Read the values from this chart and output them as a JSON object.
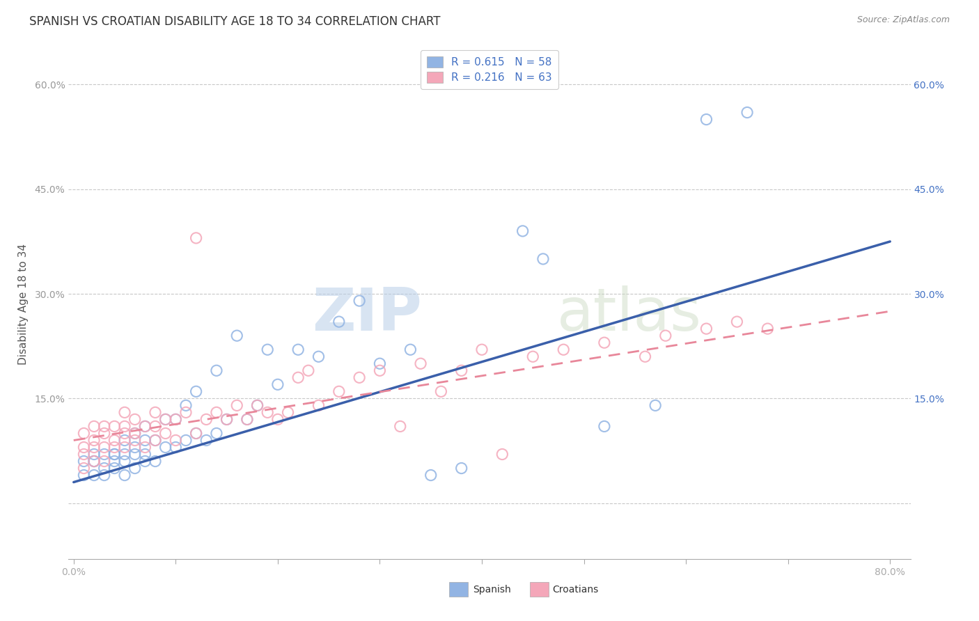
{
  "title": "SPANISH VS CROATIAN DISABILITY AGE 18 TO 34 CORRELATION CHART",
  "source": "Source: ZipAtlas.com",
  "ylabel": "Disability Age 18 to 34",
  "xlim": [
    -0.005,
    0.82
  ],
  "ylim": [
    -0.08,
    0.65
  ],
  "xticks": [
    0.0,
    0.1,
    0.2,
    0.3,
    0.4,
    0.5,
    0.6,
    0.7,
    0.8
  ],
  "xticklabels": [
    "0.0%",
    "",
    "",
    "",
    "",
    "",
    "",
    "",
    "80.0%"
  ],
  "yticks": [
    0.0,
    0.15,
    0.3,
    0.45,
    0.6
  ],
  "yticklabels": [
    "",
    "15.0%",
    "30.0%",
    "45.0%",
    "60.0%"
  ],
  "right_yticks": [
    0.15,
    0.3,
    0.45,
    0.6
  ],
  "right_yticklabels": [
    "15.0%",
    "30.0%",
    "45.0%",
    "60.0%"
  ],
  "legend_r_spanish": "0.615",
  "legend_n_spanish": "58",
  "legend_r_croatian": "0.216",
  "legend_n_croatian": "63",
  "spanish_color": "#92b4e3",
  "croatian_color": "#f4a7b9",
  "spanish_line_color": "#3a5faa",
  "croatian_line_color": "#e8879a",
  "watermark_zip": "ZIP",
  "watermark_atlas": "atlas",
  "title_fontsize": 12,
  "axis_label_fontsize": 11,
  "tick_fontsize": 10,
  "spanish_scatter_x": [
    0.01,
    0.01,
    0.02,
    0.02,
    0.02,
    0.02,
    0.03,
    0.03,
    0.03,
    0.04,
    0.04,
    0.04,
    0.04,
    0.05,
    0.05,
    0.05,
    0.05,
    0.06,
    0.06,
    0.06,
    0.06,
    0.07,
    0.07,
    0.07,
    0.07,
    0.08,
    0.08,
    0.09,
    0.09,
    0.1,
    0.1,
    0.11,
    0.11,
    0.12,
    0.12,
    0.13,
    0.14,
    0.14,
    0.15,
    0.16,
    0.17,
    0.18,
    0.19,
    0.2,
    0.22,
    0.24,
    0.26,
    0.28,
    0.3,
    0.33,
    0.35,
    0.38,
    0.44,
    0.46,
    0.52,
    0.57,
    0.62,
    0.66
  ],
  "spanish_scatter_y": [
    0.04,
    0.06,
    0.04,
    0.06,
    0.06,
    0.07,
    0.04,
    0.05,
    0.07,
    0.05,
    0.06,
    0.07,
    0.07,
    0.04,
    0.06,
    0.07,
    0.09,
    0.05,
    0.07,
    0.08,
    0.1,
    0.06,
    0.07,
    0.09,
    0.11,
    0.06,
    0.09,
    0.08,
    0.12,
    0.08,
    0.12,
    0.09,
    0.14,
    0.1,
    0.16,
    0.09,
    0.1,
    0.19,
    0.12,
    0.24,
    0.12,
    0.14,
    0.22,
    0.17,
    0.22,
    0.21,
    0.26,
    0.29,
    0.2,
    0.22,
    0.04,
    0.05,
    0.39,
    0.35,
    0.11,
    0.14,
    0.55,
    0.56
  ],
  "croatian_scatter_x": [
    0.01,
    0.01,
    0.01,
    0.01,
    0.02,
    0.02,
    0.02,
    0.02,
    0.03,
    0.03,
    0.03,
    0.03,
    0.04,
    0.04,
    0.04,
    0.05,
    0.05,
    0.05,
    0.05,
    0.06,
    0.06,
    0.06,
    0.07,
    0.07,
    0.08,
    0.08,
    0.08,
    0.09,
    0.09,
    0.1,
    0.1,
    0.11,
    0.12,
    0.12,
    0.13,
    0.14,
    0.15,
    0.16,
    0.17,
    0.18,
    0.19,
    0.2,
    0.21,
    0.22,
    0.23,
    0.24,
    0.26,
    0.28,
    0.3,
    0.32,
    0.34,
    0.36,
    0.38,
    0.4,
    0.42,
    0.45,
    0.48,
    0.52,
    0.56,
    0.58,
    0.62,
    0.65,
    0.68
  ],
  "croatian_scatter_y": [
    0.05,
    0.07,
    0.08,
    0.1,
    0.06,
    0.08,
    0.09,
    0.11,
    0.06,
    0.08,
    0.1,
    0.11,
    0.08,
    0.09,
    0.11,
    0.08,
    0.1,
    0.11,
    0.13,
    0.09,
    0.1,
    0.12,
    0.08,
    0.11,
    0.09,
    0.11,
    0.13,
    0.1,
    0.12,
    0.09,
    0.12,
    0.13,
    0.1,
    0.38,
    0.12,
    0.13,
    0.12,
    0.14,
    0.12,
    0.14,
    0.13,
    0.12,
    0.13,
    0.18,
    0.19,
    0.14,
    0.16,
    0.18,
    0.19,
    0.11,
    0.2,
    0.16,
    0.19,
    0.22,
    0.07,
    0.21,
    0.22,
    0.23,
    0.21,
    0.24,
    0.25,
    0.26,
    0.25
  ],
  "spanish_trend_x": [
    0.0,
    0.8
  ],
  "spanish_trend_y": [
    0.03,
    0.375
  ],
  "croatian_trend_x": [
    0.0,
    0.8
  ],
  "croatian_trend_y": [
    0.09,
    0.275
  ]
}
